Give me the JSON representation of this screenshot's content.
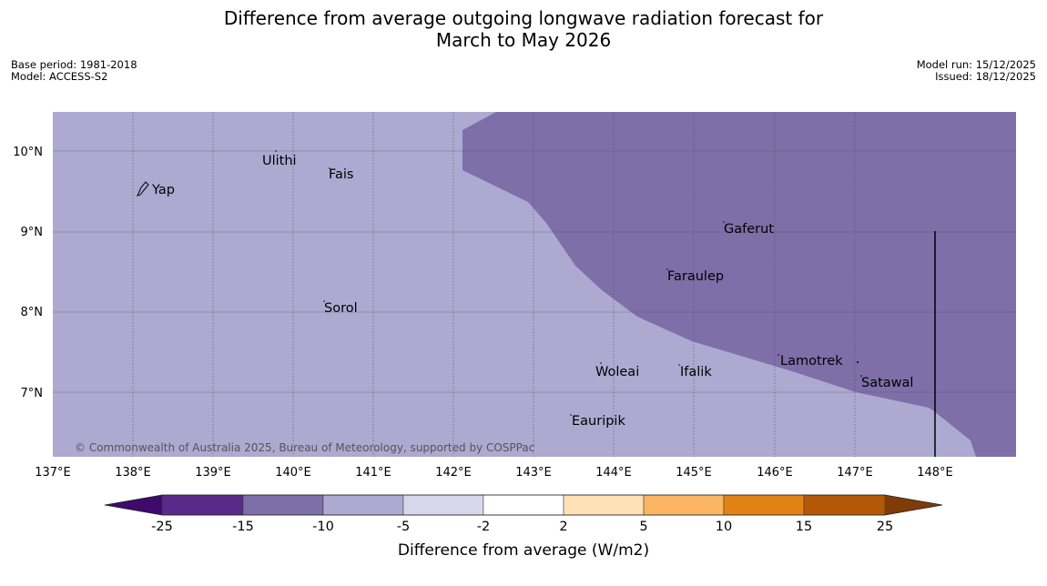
{
  "title_line1": "Difference from average outgoing longwave radiation forecast for",
  "title_line2": "March to May 2026",
  "base_period": "Base period: 1981-2018",
  "model": "Model: ACCESS-S2",
  "model_run": "Model run: 15/12/2025",
  "issued": "Issued: 18/12/2025",
  "copyright": "© Commonwealth of Australia 2025, Bureau of Meteorology, supported by COSPPac",
  "lon_ticks": [
    "137°E",
    "138°E",
    "139°E",
    "140°E",
    "141°E",
    "142°E",
    "143°E",
    "144°E",
    "145°E",
    "146°E",
    "147°E",
    "148°E"
  ],
  "lat_ticks": [
    "10°N",
    "9°N",
    "8°N",
    "7°N"
  ],
  "places": [
    "Yap",
    "Ulithi",
    "Fais",
    "Sorol",
    "Gaferut",
    "Faraulep",
    "Woleai",
    "Ifalik",
    "Lamotrek",
    "Satawal",
    "Eauripik"
  ],
  "colorbar": {
    "title": "Difference from average (W/m2)",
    "labels": [
      "-25",
      "-15",
      "-10",
      "-5",
      "-2",
      "2",
      "5",
      "10",
      "15",
      "25"
    ],
    "colors": [
      "#3f0a6b",
      "#5a2a8a",
      "#7e6fa9",
      "#aea9d0",
      "#d8d7eb",
      "#ffffff",
      "#fee0b6",
      "#fbb562",
      "#e08214",
      "#b35806",
      "#7f3b08"
    ]
  },
  "map_colors": {
    "base": "#aea9d0",
    "overlay": "#7e6fa9"
  }
}
